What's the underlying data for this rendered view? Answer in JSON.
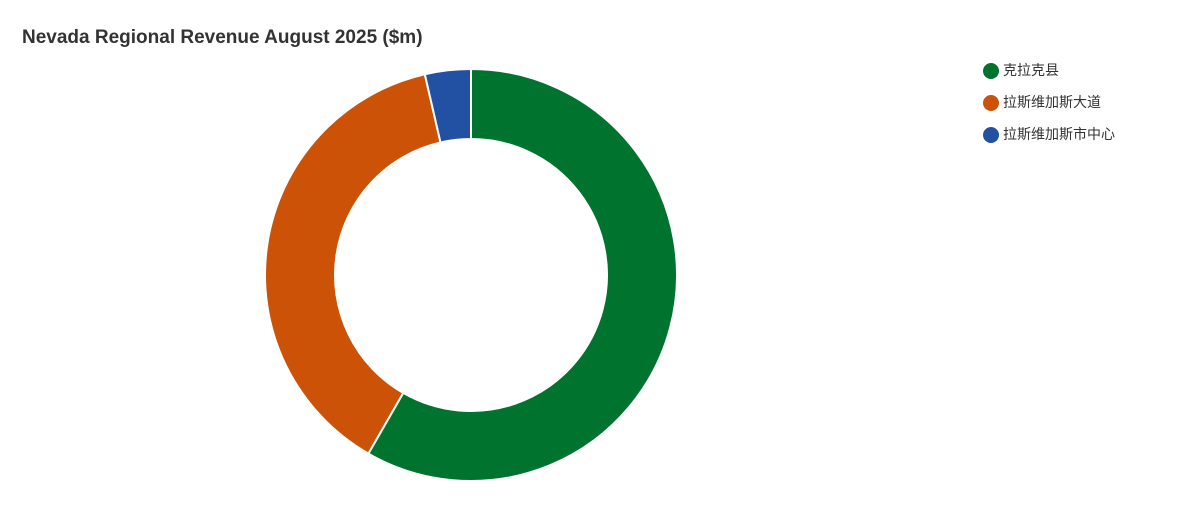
{
  "chart_data": {
    "type": "donut",
    "title": "Nevada Regional Revenue August 2025 ($m)",
    "categories": [
      "克拉克县",
      "拉斯维加斯大道",
      "拉斯维加斯市中心"
    ],
    "values": [
      58.3,
      38.1,
      3.6
    ],
    "colors": [
      "#00732f",
      "#cc5207",
      "#2251a3"
    ],
    "legend": "top-right"
  }
}
